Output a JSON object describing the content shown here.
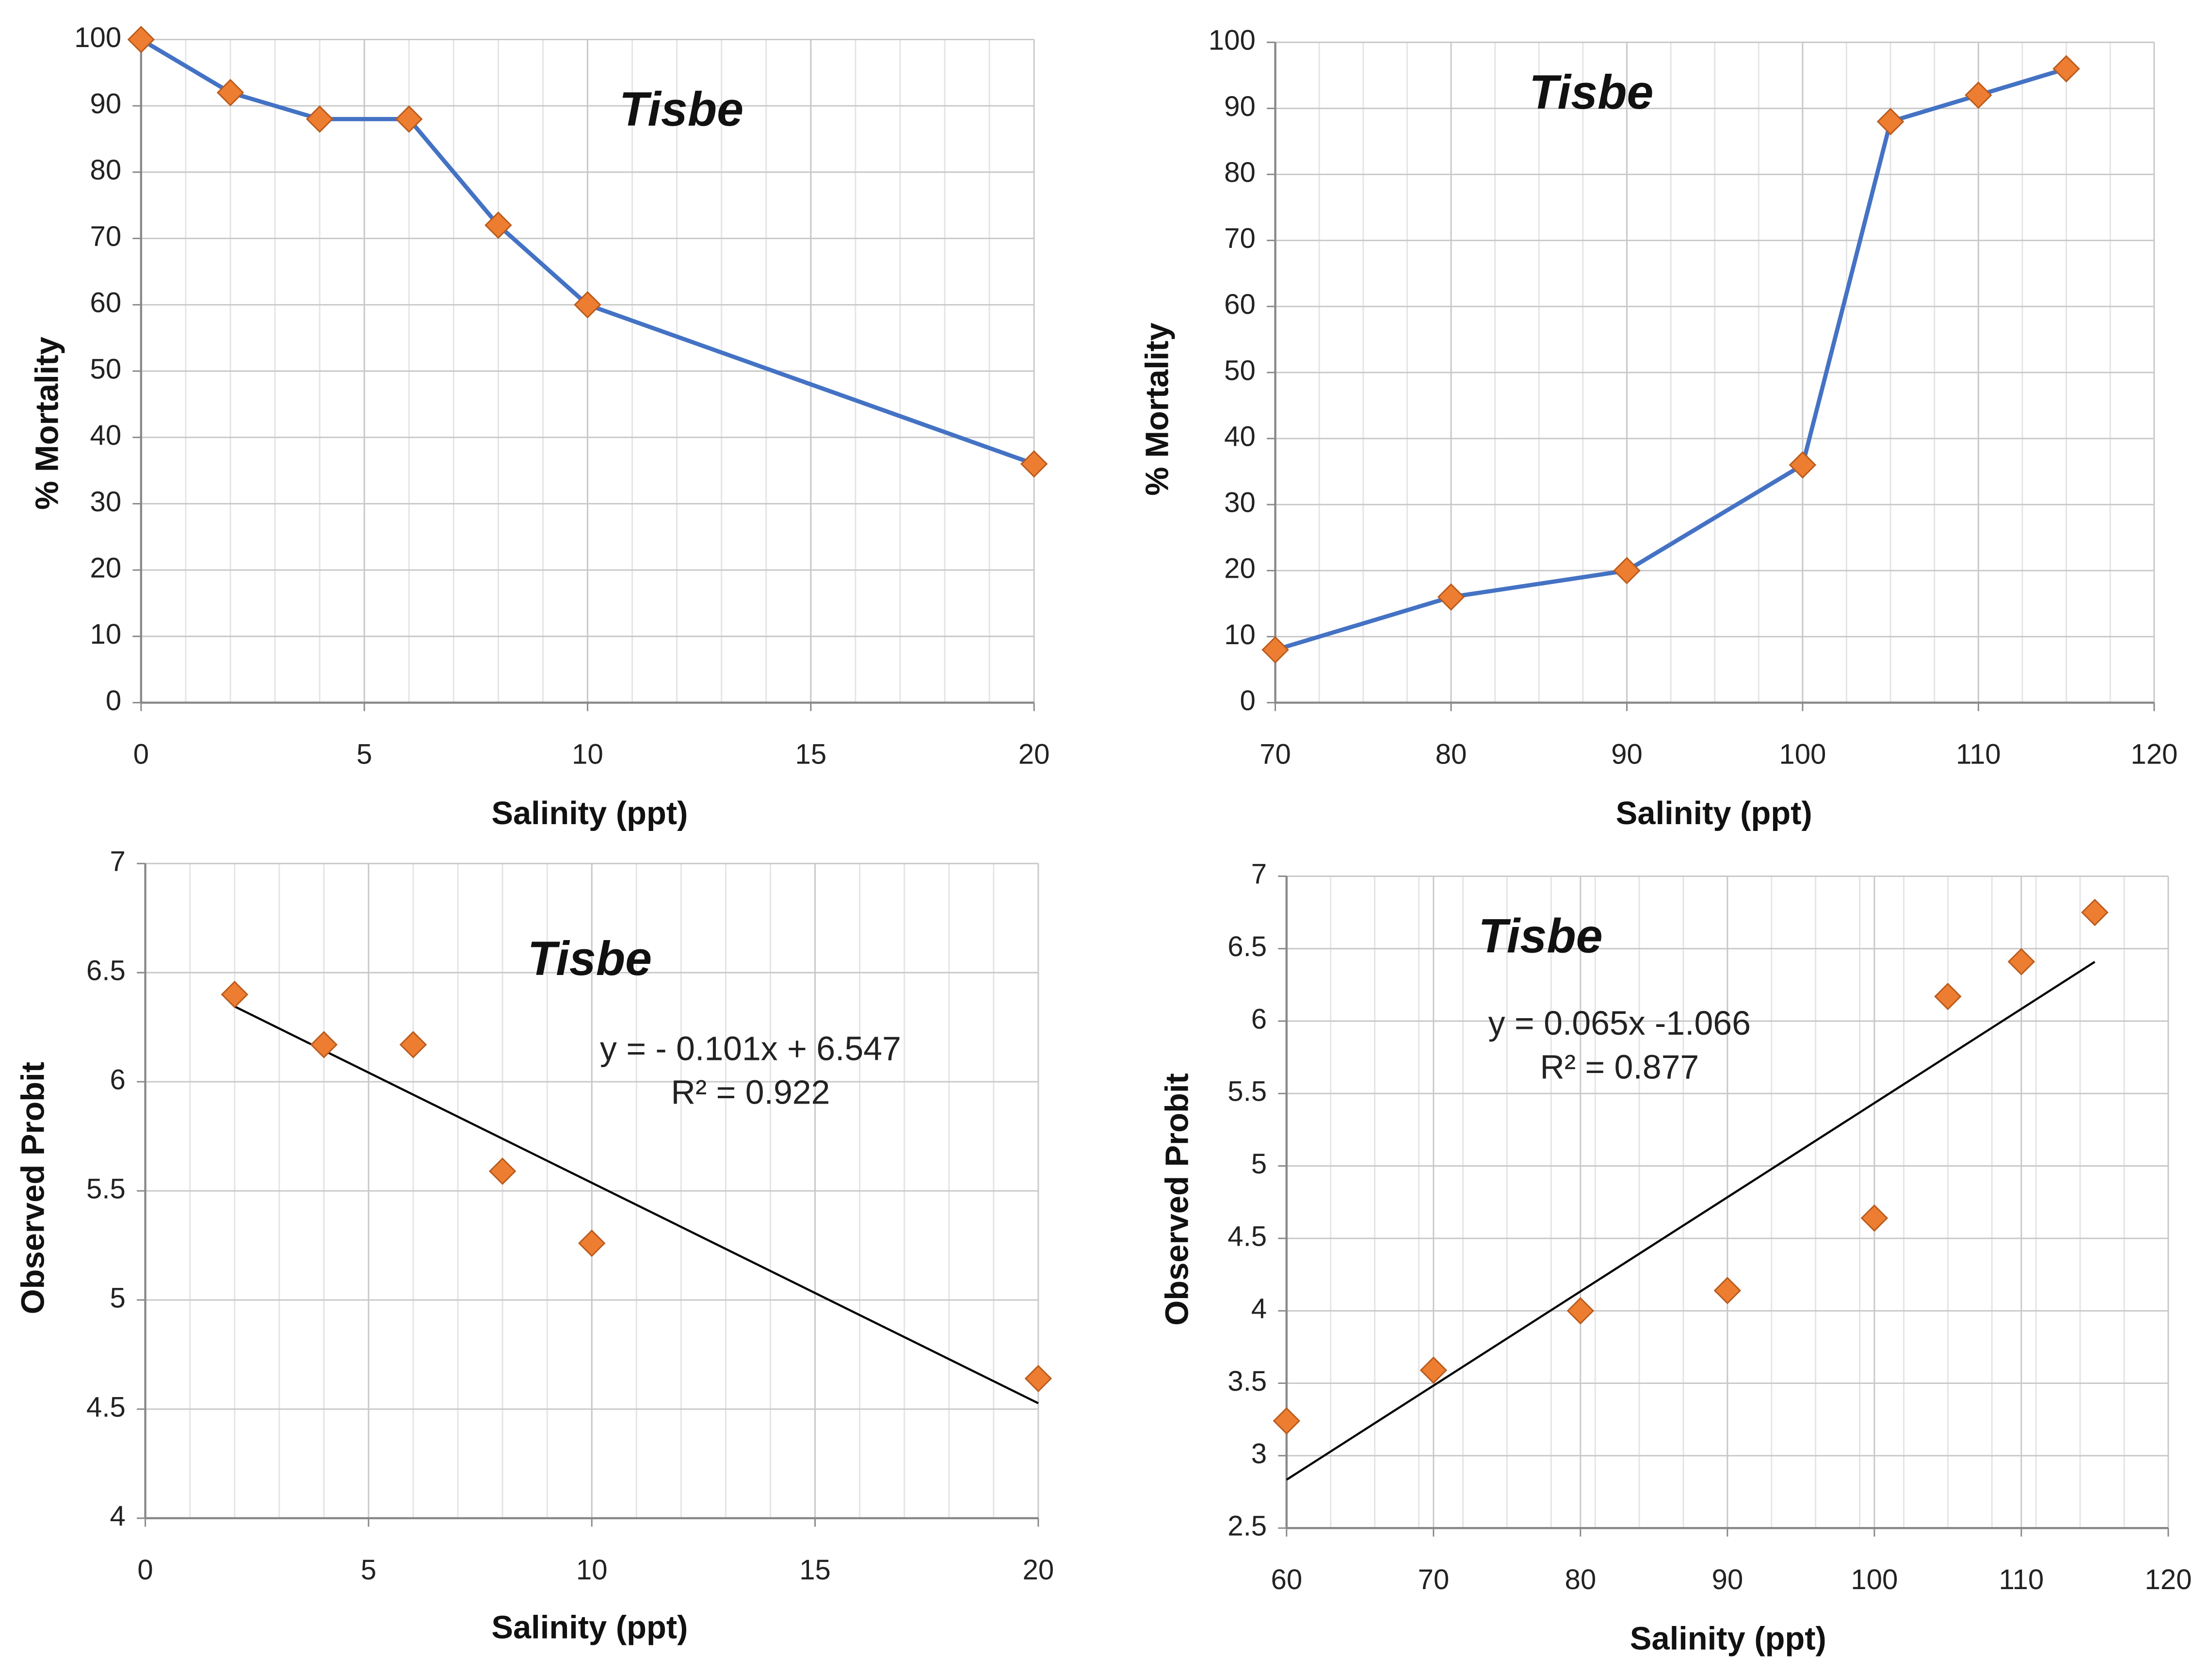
{
  "chart_data": [
    {
      "type": "line",
      "title": "Tisbe",
      "x_label": "Salinity (ppt)",
      "y_label": "% Mortality",
      "x": [
        0,
        2,
        4,
        6,
        8,
        10,
        20
      ],
      "y": [
        100,
        92,
        88,
        88,
        72,
        60,
        36
      ],
      "color": "#4472c4",
      "marker_color": "#ed7d31",
      "xlim": [
        0,
        20
      ],
      "xticks": [
        0,
        5,
        10,
        15,
        20
      ],
      "ylim": [
        0,
        100
      ],
      "yticks": [
        0,
        10,
        20,
        30,
        40,
        50,
        60,
        70,
        80,
        90,
        100
      ],
      "grid": true
    },
    {
      "type": "line",
      "title": "Tisbe",
      "x_label": "Salinity (ppt)",
      "y_label": "% Mortality",
      "x": [
        70,
        80,
        90,
        100,
        105,
        110,
        115
      ],
      "y": [
        8,
        16,
        20,
        36,
        88,
        92,
        96
      ],
      "color": "#4472c4",
      "marker_color": "#ed7d31",
      "xlim": [
        70,
        120
      ],
      "xticks": [
        70,
        80,
        90,
        100,
        110,
        120
      ],
      "ylim": [
        0,
        100
      ],
      "yticks": [
        0,
        10,
        20,
        30,
        40,
        50,
        60,
        70,
        80,
        90,
        100
      ],
      "grid": true
    },
    {
      "type": "scatter",
      "title": "Tisbe",
      "x_label": "Salinity (ppt)",
      "y_label": "Observed Probit",
      "equation": "y = - 0.101x + 6.547",
      "r_squared": "R² = 0.922",
      "x": [
        2,
        4,
        6,
        8,
        10,
        20
      ],
      "y": [
        6.4,
        6.17,
        6.17,
        5.59,
        5.26,
        4.64
      ],
      "trendline": {
        "x": [
          2,
          20
        ],
        "y": [
          6.345,
          4.527
        ],
        "color": "#000000"
      },
      "marker_color": "#ed7d31",
      "xlim": [
        0,
        20
      ],
      "xticks": [
        0,
        5,
        10,
        15,
        20
      ],
      "ylim": [
        4,
        7
      ],
      "yticks": [
        4,
        4.5,
        5,
        5.5,
        6,
        6.5,
        7
      ],
      "grid": true
    },
    {
      "type": "scatter",
      "title": "Tisbe",
      "x_label": "Salinity (ppt)",
      "y_label": "Observed Probit",
      "equation": "y = 0.065x -1.066",
      "r_squared": "R² = 0.877",
      "x": [
        60,
        70,
        80,
        90,
        100,
        105,
        110,
        115
      ],
      "y": [
        3.24,
        3.59,
        4.0,
        4.14,
        4.64,
        6.17,
        6.41,
        6.75
      ],
      "trendline": {
        "x": [
          60,
          115
        ],
        "y": [
          2.834,
          6.409
        ],
        "color": "#000000"
      },
      "marker_color": "#ed7d31",
      "xlim": [
        60,
        120
      ],
      "xticks": [
        60,
        70,
        80,
        90,
        100,
        110,
        120
      ],
      "ylim": [
        2.5,
        7
      ],
      "yticks": [
        2.5,
        3,
        3.5,
        4,
        4.5,
        5,
        5.5,
        6,
        6.5,
        7
      ],
      "grid": true
    }
  ]
}
